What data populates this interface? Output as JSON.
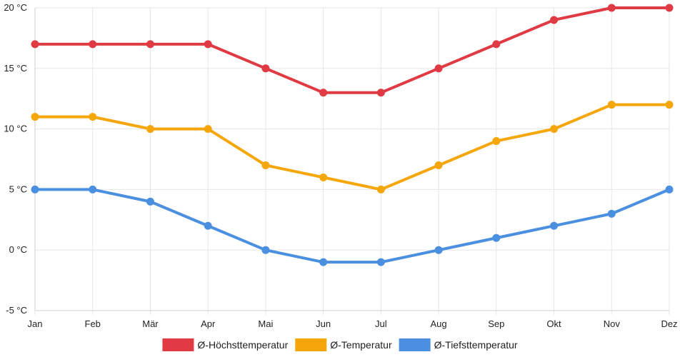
{
  "chart_data": {
    "type": "line",
    "title": "",
    "xlabel": "",
    "ylabel": "",
    "categories": [
      "Jan",
      "Feb",
      "Mär",
      "Apr",
      "Mai",
      "Jun",
      "Jul",
      "Aug",
      "Sep",
      "Okt",
      "Nov",
      "Dez"
    ],
    "ylim": [
      -5,
      20
    ],
    "yticks": [
      20,
      15,
      10,
      5,
      0,
      -5
    ],
    "ytick_labels": [
      "20 °C",
      "15 °C",
      "10 °C",
      "5 °C",
      "0 °C",
      "-5 °C"
    ],
    "grid": true,
    "legend_position": "bottom",
    "series": [
      {
        "name": "Ø-Höchsttemperatur",
        "color": "#e03a44",
        "values": [
          17,
          17,
          17,
          17,
          15,
          13,
          13,
          15,
          17,
          19,
          20,
          20
        ]
      },
      {
        "name": "Ø-Temperatur",
        "color": "#f5a60b",
        "values": [
          11,
          11,
          10,
          10,
          7,
          6,
          5,
          7,
          9,
          10,
          12,
          12
        ]
      },
      {
        "name": "Ø-Tiefsttemperatur",
        "color": "#4a8fe0",
        "values": [
          5,
          5,
          4,
          2,
          0,
          -1,
          -1,
          0,
          1,
          2,
          3,
          5
        ]
      }
    ]
  }
}
